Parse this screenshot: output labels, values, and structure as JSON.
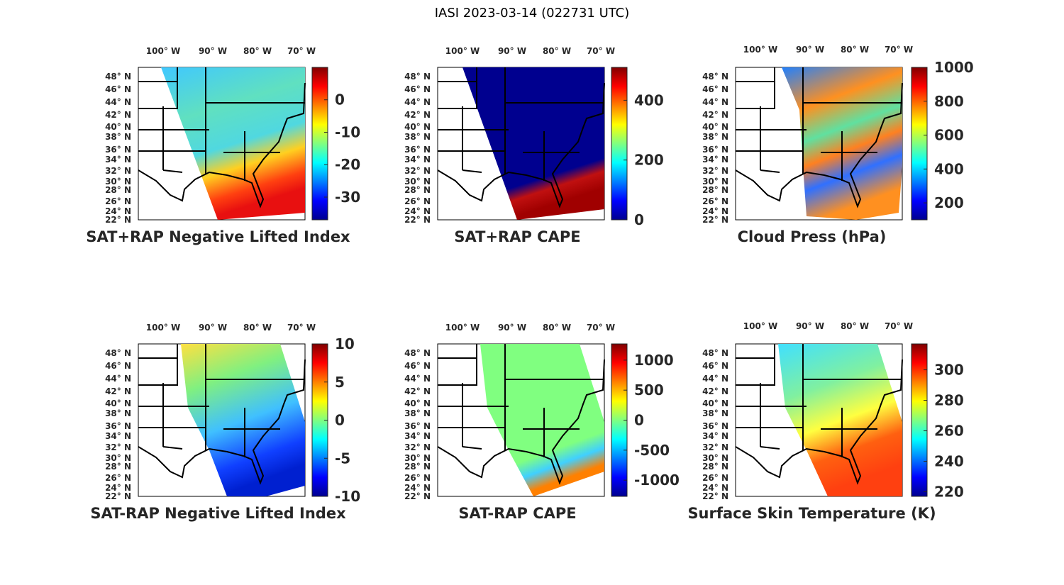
{
  "figure_title": "IASI 2023-03-14 (022731 UTC)",
  "lon_labels": [
    "100° W",
    "90° W",
    "80° W",
    "70° W"
  ],
  "lat_labels": [
    "48° N",
    "46° N",
    "44° N",
    "42° N",
    "40° N",
    "38° N",
    "36° N",
    "34° N",
    "32° N",
    "30° N",
    "28° N",
    "26° N",
    "24° N",
    "22° N"
  ],
  "chart_data": [
    {
      "type": "heatmap",
      "title": "SAT+RAP Negative Lifted Index",
      "colorbar": {
        "range": [
          -37,
          10
        ],
        "ticks": [
          0,
          -10,
          -20,
          -30
        ],
        "tick_labels": [
          "0",
          "-10",
          "-20",
          "-30"
        ]
      }
    },
    {
      "type": "heatmap",
      "title": "SAT+RAP CAPE",
      "colorbar": {
        "range": [
          0,
          510
        ],
        "ticks": [
          400,
          200,
          0
        ],
        "tick_labels": [
          "400",
          "200",
          "0"
        ]
      }
    },
    {
      "type": "heatmap",
      "title": "Cloud Press (hPa)",
      "colorbar": {
        "range": [
          100,
          1000
        ],
        "ticks": [
          1000,
          800,
          600,
          400,
          200
        ],
        "tick_labels": [
          "1000",
          "800",
          "600",
          "400",
          "200"
        ]
      }
    },
    {
      "type": "heatmap",
      "title": "SAT-RAP Negative Lifted Index",
      "colorbar": {
        "range": [
          -10,
          10
        ],
        "ticks": [
          10,
          5,
          0,
          -5,
          -10
        ],
        "tick_labels": [
          "10",
          "5",
          "0",
          "-5",
          "-10"
        ]
      }
    },
    {
      "type": "heatmap",
      "title": "SAT-RAP CAPE",
      "colorbar": {
        "range": [
          -1270,
          1270
        ],
        "ticks": [
          1000,
          500,
          0,
          -500,
          -1000
        ],
        "tick_labels": [
          "1000",
          "500",
          "0",
          "-500",
          "-1000"
        ]
      }
    },
    {
      "type": "heatmap",
      "title": "Surface Skin Temperature (K)",
      "colorbar": {
        "range": [
          217,
          317
        ],
        "ticks": [
          300,
          280,
          260,
          240,
          220
        ],
        "tick_labels": [
          "300",
          "280",
          "260",
          "240",
          "220"
        ]
      }
    }
  ],
  "colormap": [
    "#00008f",
    "#0000ff",
    "#0080ff",
    "#00ffff",
    "#80ff80",
    "#ffff00",
    "#ff8000",
    "#ff0000",
    "#800000"
  ]
}
